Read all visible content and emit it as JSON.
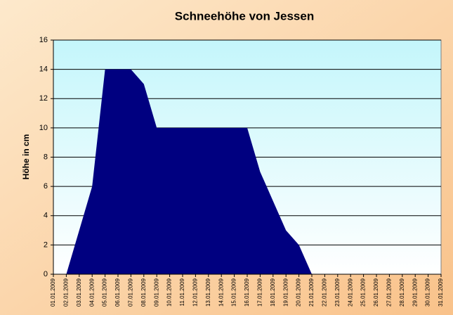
{
  "chart_data": {
    "type": "area",
    "title": "Schneehöhe von Jessen",
    "y_label": "Höhe in cm",
    "categories": [
      "01.01.2009",
      "02.01.2009",
      "03.01.2009",
      "04.01.2009",
      "05.01.2009",
      "06.01.2009",
      "07.01.2009",
      "08.01.2009",
      "09.01.2009",
      "10.01.2009",
      "11.01.2009",
      "12.01.2009",
      "13.01.2009",
      "14.01.2009",
      "15.01.2009",
      "16.01.2009",
      "17.01.2009",
      "18.01.2009",
      "19.01.2009",
      "20.01.2009",
      "21.01.2009",
      "22.01.2009",
      "23.01.2009",
      "24.01.2009",
      "25.01.2009",
      "26.01.2009",
      "27.01.2009",
      "28.01.2009",
      "29.01.2009",
      "30.01.2009",
      "31.01.2009"
    ],
    "values": [
      0,
      0,
      3,
      6,
      14,
      14,
      14,
      13,
      10,
      10,
      10,
      10,
      10,
      10,
      10,
      10,
      7,
      5,
      3,
      2,
      0,
      0,
      0,
      0,
      0,
      0,
      0,
      0,
      0,
      0,
      0
    ],
    "color": "#000080",
    "ylim": [
      0,
      16
    ],
    "yticks": [
      0,
      2,
      4,
      6,
      8,
      10,
      12,
      14,
      16
    ],
    "grid": true
  }
}
